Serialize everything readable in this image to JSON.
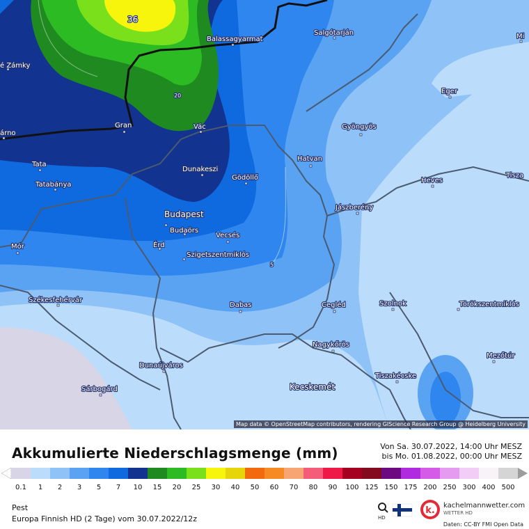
{
  "map": {
    "attribution": "Map data © OpenStreetMap contributors, rendering GIScience Research Group @ Heidelberg University",
    "contour_labels": [
      "36",
      "20",
      "5"
    ],
    "cities": [
      {
        "name": "é Zámky"
      },
      {
        "name": "árno"
      },
      {
        "name": "Balassagyarmat"
      },
      {
        "name": "Salgótarján"
      },
      {
        "name": "Mi"
      },
      {
        "name": "Eger"
      },
      {
        "name": "Gran"
      },
      {
        "name": "Vác"
      },
      {
        "name": "Gyöngyös"
      },
      {
        "name": "Tata"
      },
      {
        "name": "Tatabánya"
      },
      {
        "name": "Dunakeszi"
      },
      {
        "name": "Gödöllő"
      },
      {
        "name": "Hatvan"
      },
      {
        "name": "Heves"
      },
      {
        "name": "Tisza"
      },
      {
        "name": "Jászberény"
      },
      {
        "name": "Budapest"
      },
      {
        "name": "Budaörs"
      },
      {
        "name": "Mór"
      },
      {
        "name": "Érd"
      },
      {
        "name": "Vecsés"
      },
      {
        "name": "Szigetszentmiklós"
      },
      {
        "name": "Székesfehérvár"
      },
      {
        "name": "Dabas"
      },
      {
        "name": "Cegléd"
      },
      {
        "name": "Szolnok"
      },
      {
        "name": "Törökszentmiklós"
      },
      {
        "name": "Nagykőrös"
      },
      {
        "name": "Dunaújváros"
      },
      {
        "name": "Mezőtúr"
      },
      {
        "name": "Tiszakécske"
      },
      {
        "name": "Sárbogárd"
      },
      {
        "name": "Kecskemét"
      }
    ]
  },
  "footer": {
    "title": "Akkumulierte Niederschlagsmenge (mm)",
    "period_from": "Von Sa. 30.07.2022, 14:00 Uhr MESZ",
    "period_to": "bis Mo. 01.08.2022, 00:00 Uhr MESZ",
    "region": "Pest",
    "model": "Europa Finnish HD (2 Tage) vom  30.07.2022/12z",
    "brand_name": "kachelmannwetter.com",
    "brand_sub": "WETTER HD",
    "hd_label": "HD",
    "data_source": "Daten: CC-BY FMI Open Data"
  },
  "scale": {
    "labels": [
      "0.1",
      "1",
      "2",
      "3",
      "5",
      "7",
      "10",
      "15",
      "20",
      "25",
      "30",
      "40",
      "50",
      "60",
      "70",
      "80",
      "90",
      "100",
      "125",
      "150",
      "175",
      "200",
      "250",
      "300",
      "400",
      "500"
    ],
    "colors": [
      "#d7d5e6",
      "#bcdcfb",
      "#8fc2f6",
      "#5aa3f2",
      "#2f86ef",
      "#0f6ae0",
      "#12338f",
      "#1f8a1f",
      "#2dbb23",
      "#7ae01c",
      "#f8f50c",
      "#e5d509",
      "#f26a0d",
      "#f78a22",
      "#f7a572",
      "#f55c7a",
      "#ee1946",
      "#a5001f",
      "#840a20",
      "#6d0a82",
      "#b02ae0",
      "#d65ae8",
      "#e59bf0",
      "#f2cdf5",
      "#f7f3f6",
      "#d5d5d5"
    ]
  }
}
